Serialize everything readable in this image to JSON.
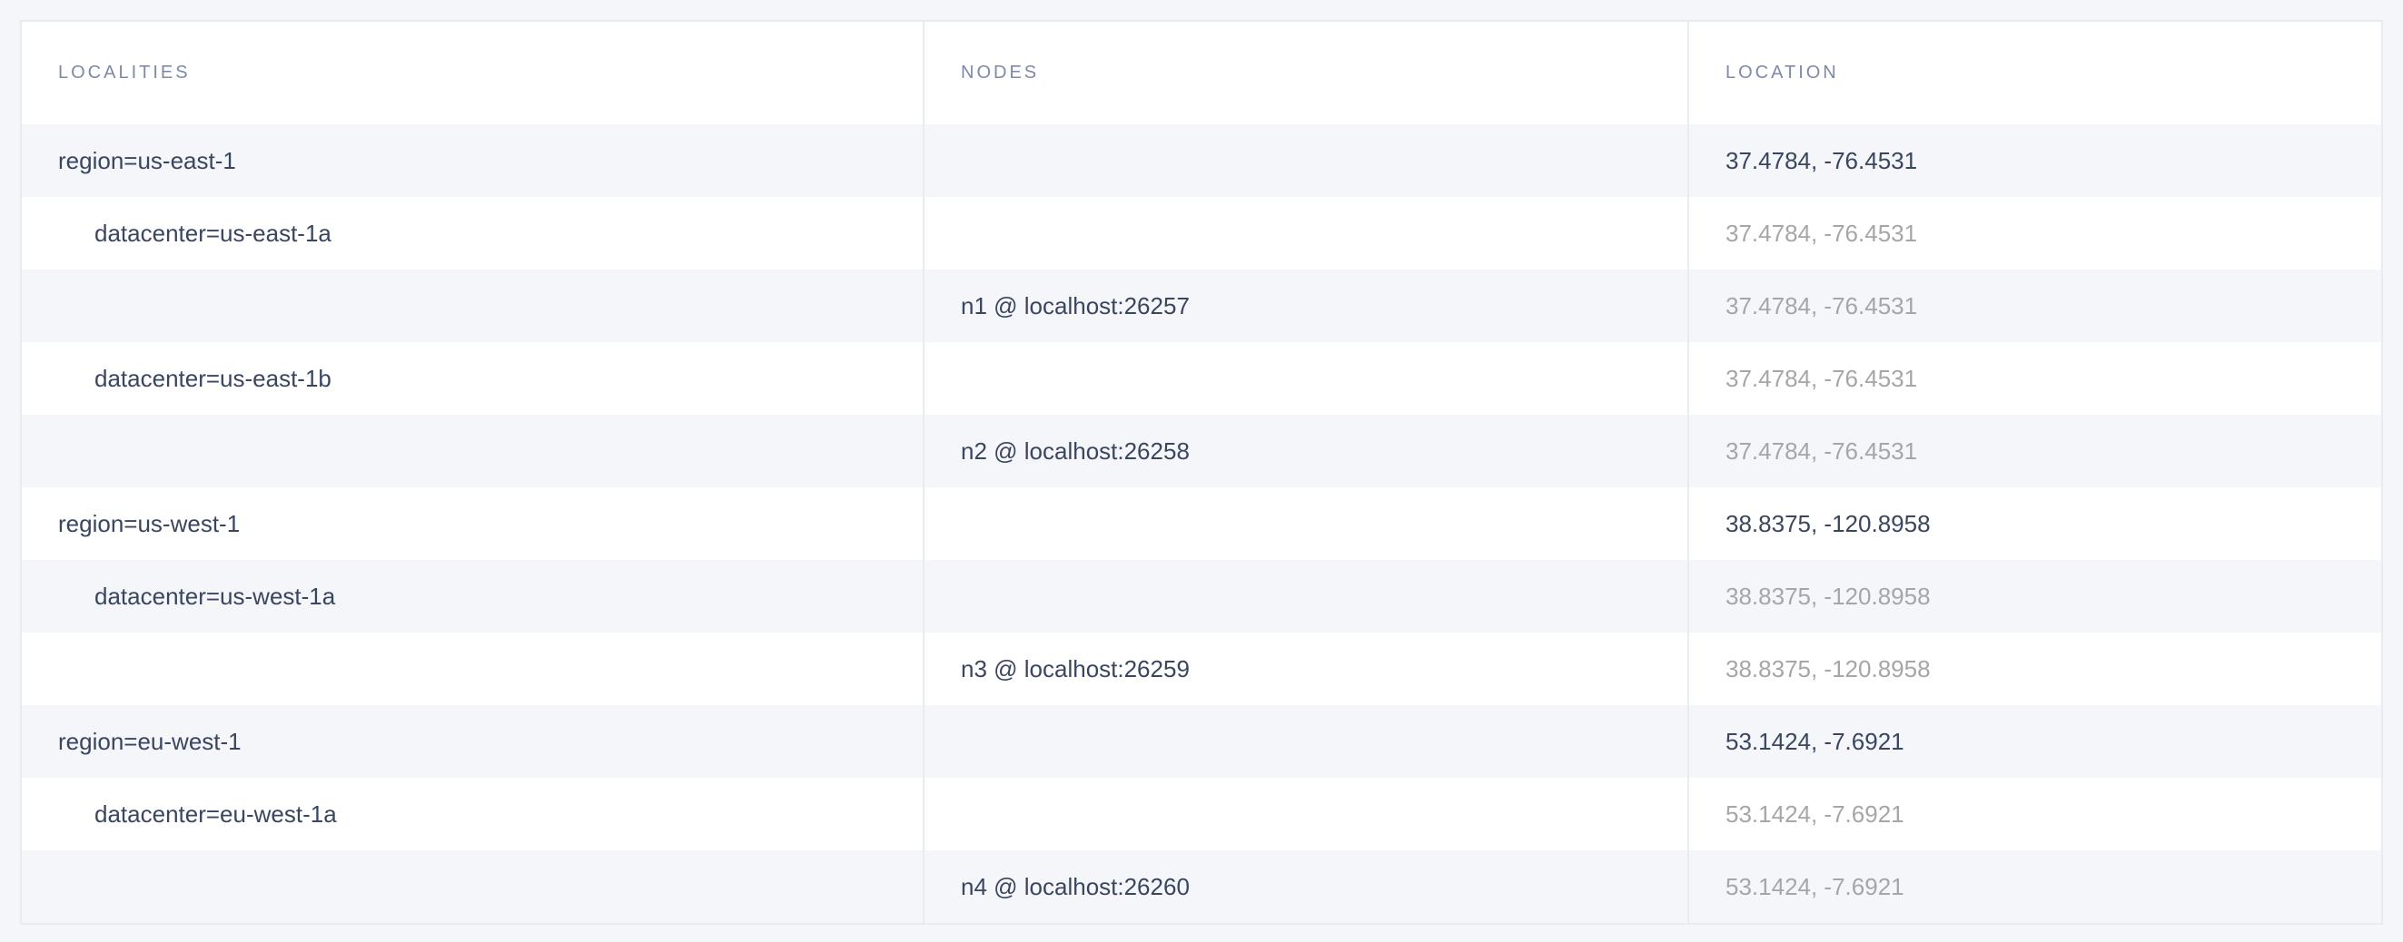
{
  "table": {
    "columns": [
      "LOCALITIES",
      "NODES",
      "LOCATION"
    ],
    "rows": [
      {
        "locality": "region=us-east-1",
        "level": 0,
        "node": "",
        "location": "37.4784, -76.4531",
        "location_muted": false
      },
      {
        "locality": "datacenter=us-east-1a",
        "level": 1,
        "node": "",
        "location": "37.4784, -76.4531",
        "location_muted": true
      },
      {
        "locality": "",
        "level": 2,
        "node": "n1 @ localhost:26257",
        "location": "37.4784, -76.4531",
        "location_muted": true
      },
      {
        "locality": "datacenter=us-east-1b",
        "level": 1,
        "node": "",
        "location": "37.4784, -76.4531",
        "location_muted": true
      },
      {
        "locality": "",
        "level": 2,
        "node": "n2 @ localhost:26258",
        "location": "37.4784, -76.4531",
        "location_muted": true
      },
      {
        "locality": "region=us-west-1",
        "level": 0,
        "node": "",
        "location": "38.8375, -120.8958",
        "location_muted": false
      },
      {
        "locality": "datacenter=us-west-1a",
        "level": 1,
        "node": "",
        "location": "38.8375, -120.8958",
        "location_muted": true
      },
      {
        "locality": "",
        "level": 2,
        "node": "n3 @ localhost:26259",
        "location": "38.8375, -120.8958",
        "location_muted": true
      },
      {
        "locality": "region=eu-west-1",
        "level": 0,
        "node": "",
        "location": "53.1424, -7.6921",
        "location_muted": false
      },
      {
        "locality": "datacenter=eu-west-1a",
        "level": 1,
        "node": "",
        "location": "53.1424, -7.6921",
        "location_muted": true
      },
      {
        "locality": "",
        "level": 2,
        "node": "n4 @ localhost:26260",
        "location": "53.1424, -7.6921",
        "location_muted": true
      }
    ]
  },
  "colors": {
    "header_text": "#7e89a9",
    "text": "#3a4560",
    "muted_text": "#a4a6aa",
    "stripe": "#f5f6fa"
  }
}
